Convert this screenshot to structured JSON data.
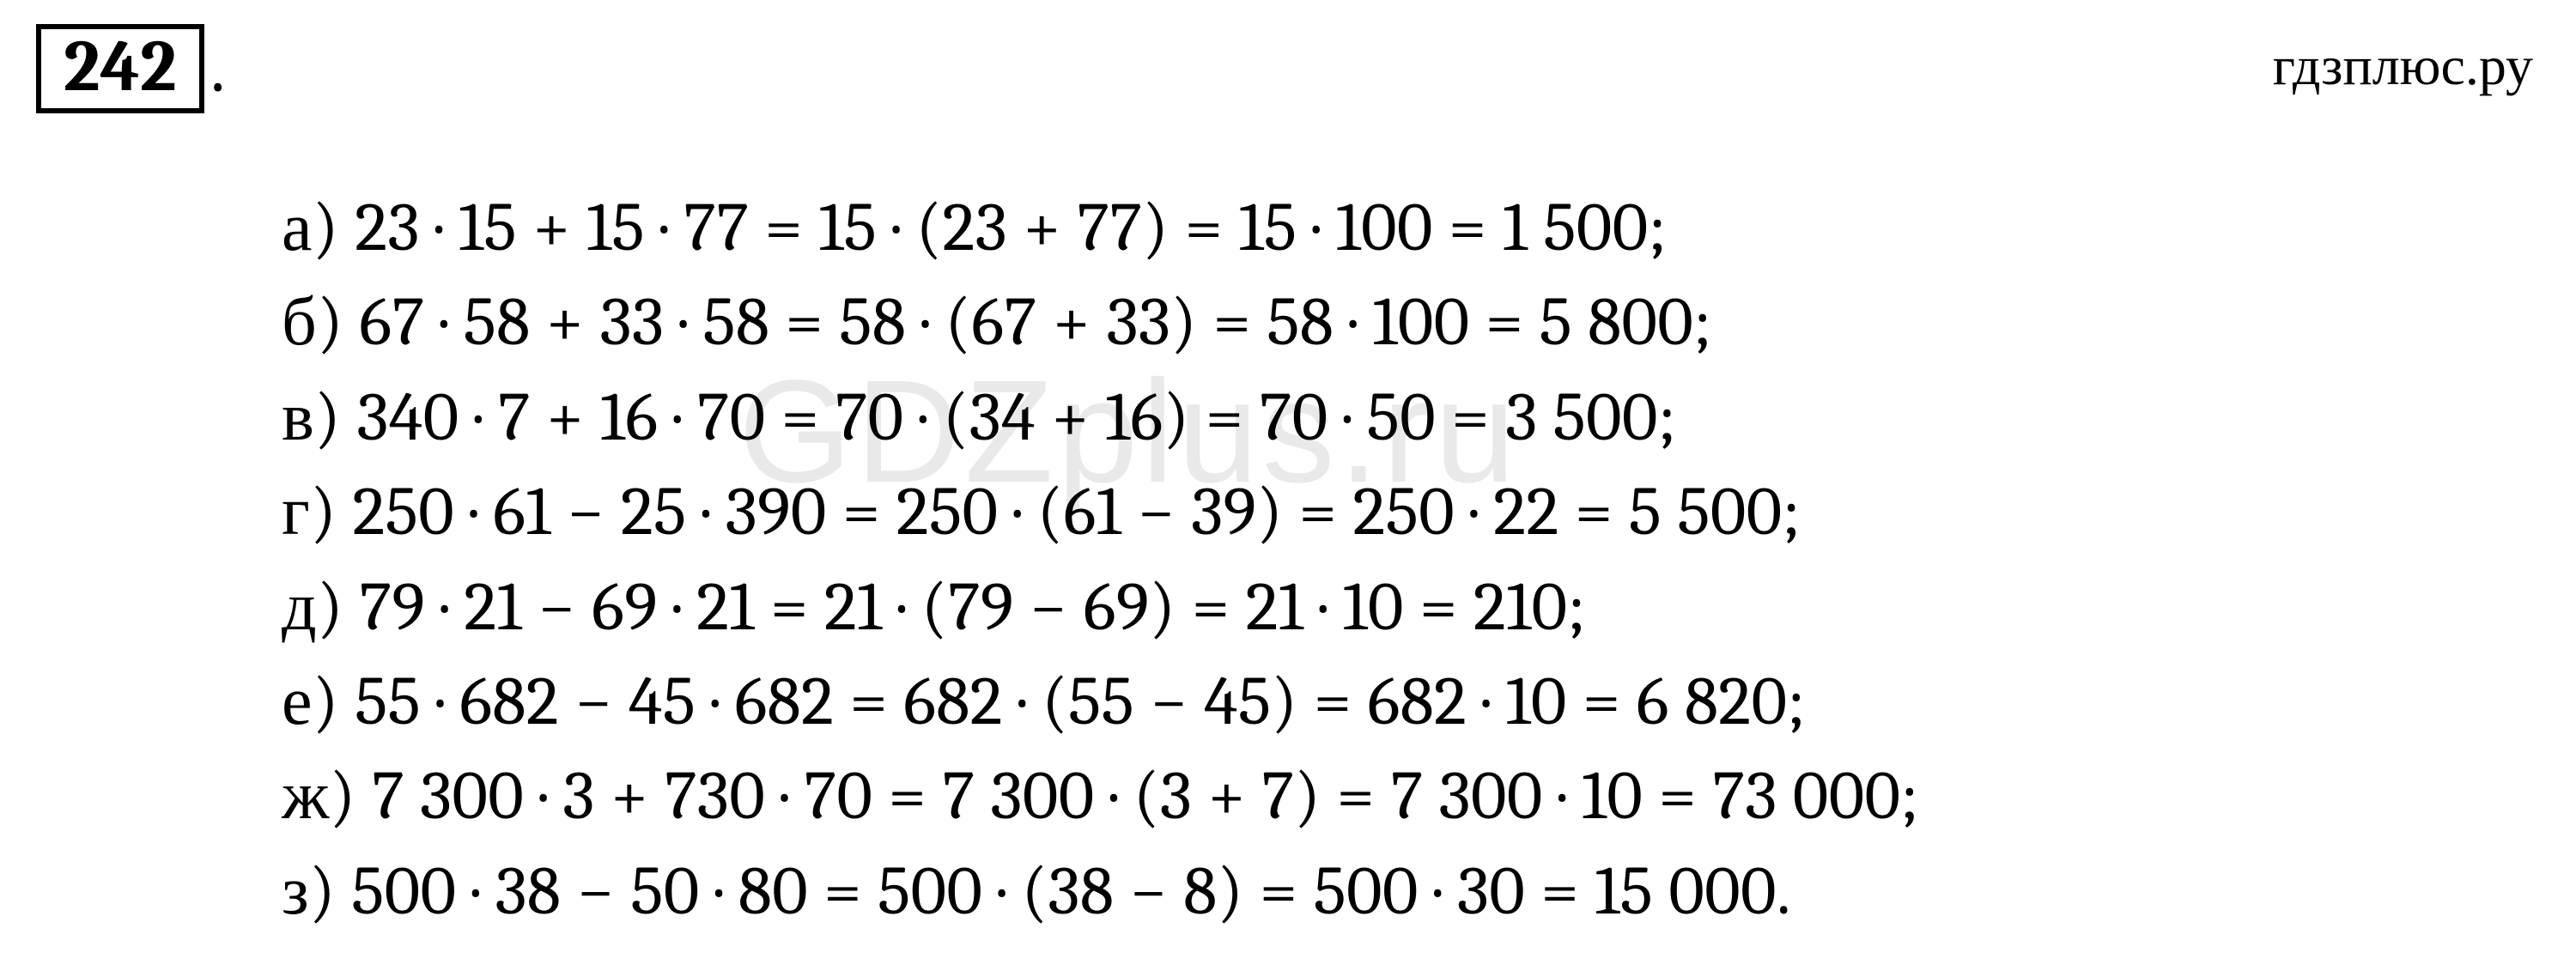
{
  "problem": {
    "number": "242",
    "period": "."
  },
  "source": "гдзплюс.ру",
  "watermark": "GDZplus.ru",
  "lines": [
    {
      "label": "а)",
      "text": "23 · 15 + 15 · 77 = 15 · (23 + 77) = 15 · 100 = 1 500;"
    },
    {
      "label": "б)",
      "text": "67 · 58 + 33 · 58 = 58 · (67 + 33) = 58 · 100 = 5 800;"
    },
    {
      "label": "в)",
      "text": "340 · 7 + 16 · 70 = 70 · (34 + 16) = 70 · 50 = 3 500;"
    },
    {
      "label": "г)",
      "text": "250 · 61 − 25 · 390 = 250 · (61 − 39) = 250 · 22 = 5 500;"
    },
    {
      "label": "д)",
      "text": "79 · 21 − 69 · 21 = 21 · (79 − 69) = 21 · 10 = 210;"
    },
    {
      "label": "е)",
      "text": "55 · 682 − 45 · 682 = 682 · (55 − 45) = 682 · 10 = 6 820;"
    },
    {
      "label": "ж)",
      "text": "7 300 · 3 + 730 · 70 = 7 300 · (3 + 7) = 7 300 · 10 = 73 000;"
    },
    {
      "label": "з)",
      "text": "500 · 38 − 50 · 80 = 500 · (38 − 8) = 500 · 30 = 15 000."
    }
  ],
  "style": {
    "background": "#ffffff",
    "text_color": "#000000",
    "watermark_color": "rgba(120,120,120,0.16)",
    "problem_box_border": "6px solid #000",
    "font_main": "Cambria, Georgia, Times New Roman, serif",
    "font_size_main": 80,
    "font_size_number": 84,
    "font_size_source": 64,
    "font_size_watermark": 170
  }
}
